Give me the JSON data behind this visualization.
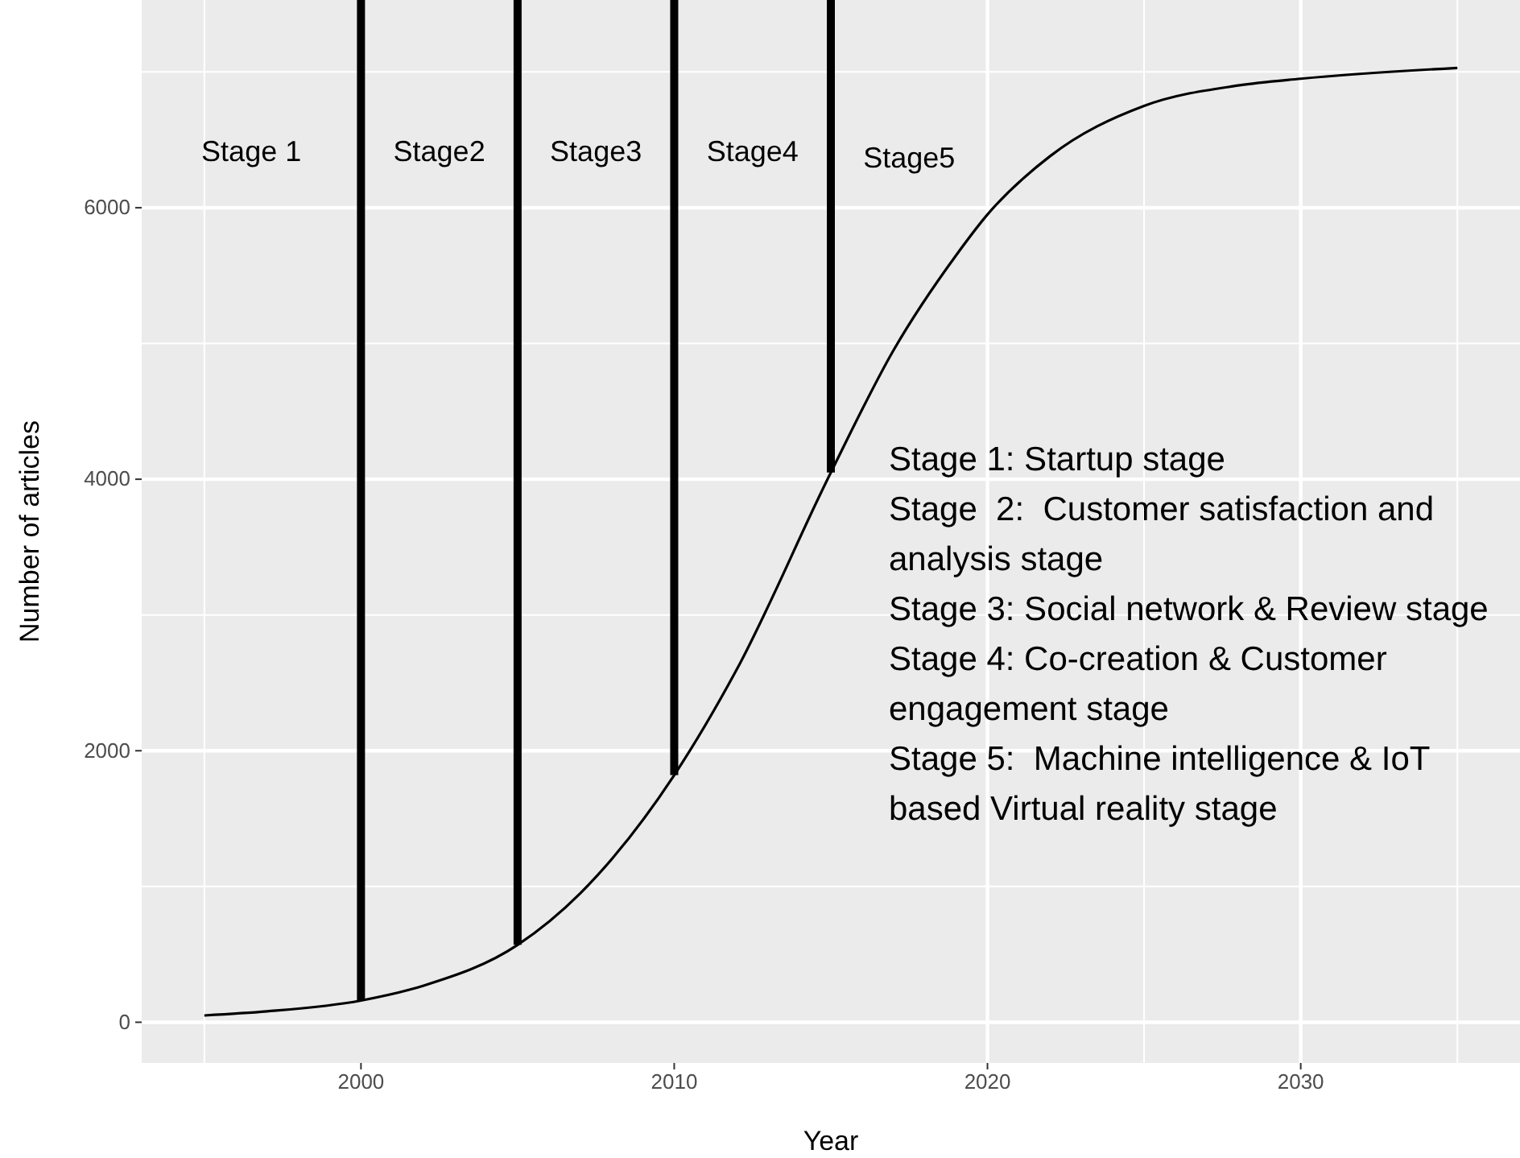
{
  "chart_data": {
    "type": "line",
    "xlabel": "Year",
    "ylabel": "Number of articles",
    "x": [
      1995,
      1997,
      2000,
      2002,
      2005,
      2007,
      2010,
      2012,
      2015,
      2017,
      2019,
      2020,
      2022,
      2025,
      2028,
      2030,
      2035
    ],
    "series": [
      {
        "color": "#000000",
        "values": [
          50,
          80,
          160,
          270,
          570,
          950,
          1820,
          2600,
          4050,
          4950,
          5650,
          5950,
          6380,
          6750,
          6900,
          6950,
          7030
        ]
      }
    ],
    "xlim": [
      1993,
      2037
    ],
    "xticks": [
      2000,
      2010,
      2020,
      2030
    ],
    "ylim": [
      -300,
      7530
    ],
    "yticks": [
      0,
      2000,
      4000,
      6000
    ],
    "grid": true,
    "line_style": "solid",
    "marker": "none",
    "ref_lines": [
      {
        "axis": "x",
        "value": 2000,
        "color": "#000000"
      },
      {
        "axis": "x",
        "value": 2005,
        "color": "#000000"
      },
      {
        "axis": "x",
        "value": 2010,
        "color": "#000000"
      },
      {
        "axis": "x",
        "value": 2015,
        "color": "#000000"
      }
    ],
    "annotations": [
      "Stage 1",
      "Stage2",
      "Stage3",
      "Stage4",
      "Stage5",
      "Stage 1: Startup stage",
      "Stage  2:  Customer satisfaction and analysis stage",
      "Stage 3: Social network & Review stage",
      "Stage 4: Co-creation & Customer engagement stage",
      "Stage 5:  Machine intelligence & IoT based Virtual reality stage"
    ]
  }
}
